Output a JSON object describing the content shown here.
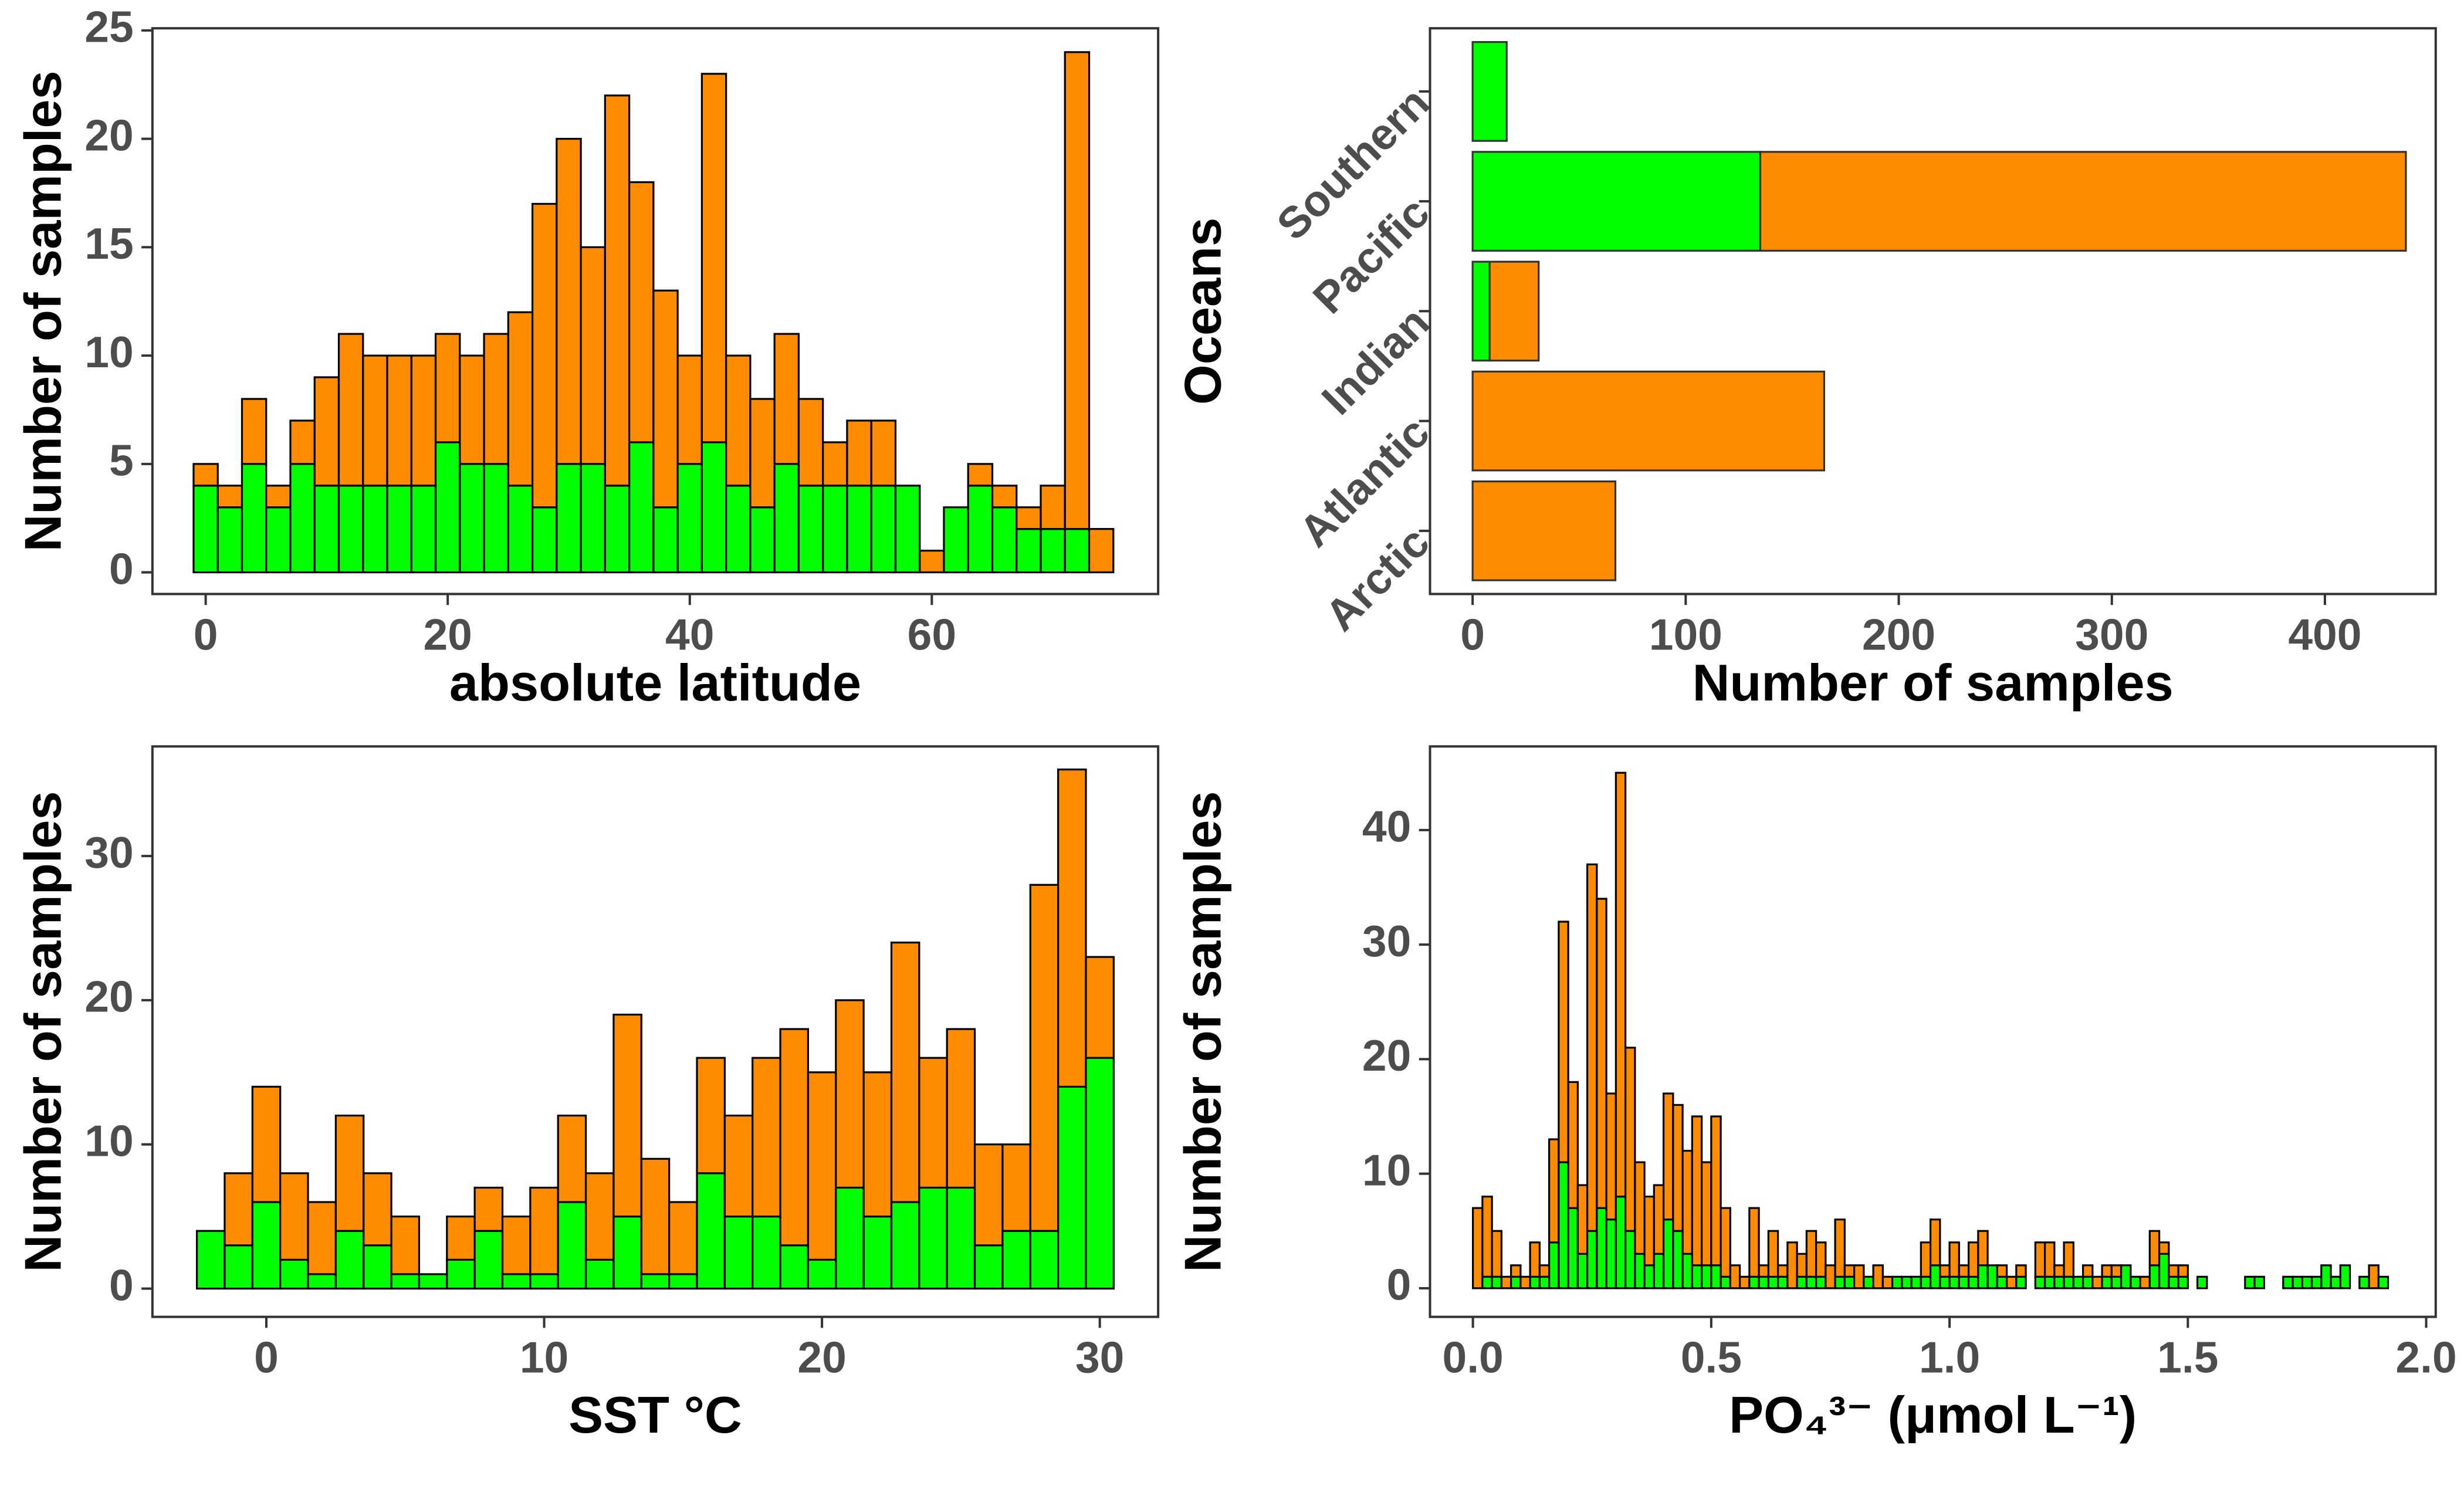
{
  "chart_data": [
    {
      "type": "histogram",
      "xlabel": "absolute latitude",
      "ylabel": "Number of samples",
      "bins": [
        -1,
        1,
        3,
        5,
        7,
        9,
        11,
        13,
        15,
        17,
        19,
        21,
        23,
        25,
        27,
        29,
        31,
        33,
        35,
        37,
        39,
        41,
        43,
        45,
        47,
        49,
        51,
        53,
        55,
        57,
        59,
        61,
        63,
        65,
        67,
        69,
        71,
        73,
        75
      ],
      "series": [
        {
          "color": "#00ff00",
          "values": [
            4,
            3,
            5,
            3,
            5,
            4,
            4,
            4,
            4,
            4,
            6,
            5,
            5,
            4,
            3,
            5,
            5,
            4,
            6,
            3,
            5,
            6,
            4,
            3,
            5,
            4,
            4,
            4,
            4,
            4,
            0,
            3,
            4,
            3,
            2,
            2,
            2,
            0
          ]
        },
        {
          "color": "#ff8c00",
          "values": [
            1,
            1,
            3,
            1,
            2,
            5,
            7,
            6,
            6,
            6,
            5,
            5,
            6,
            8,
            14,
            15,
            10,
            18,
            12,
            10,
            5,
            17,
            6,
            5,
            6,
            4,
            2,
            3,
            3,
            0,
            1,
            0,
            1,
            1,
            1,
            2,
            22,
            2
          ]
        }
      ],
      "xlim": [
        -4.4,
        78.7
      ],
      "xticks": [
        0,
        20,
        40,
        60
      ],
      "ylim": [
        -1,
        25.1
      ],
      "yticks": [
        0,
        5,
        10,
        15,
        20,
        25
      ]
    },
    {
      "type": "bar",
      "orientation": "horizontal",
      "xlabel": "Number of samples",
      "ylabel": "Oceans",
      "categories": [
        "Arctic",
        "Atlantic",
        "Indian",
        "Pacific",
        "Southern"
      ],
      "series": [
        {
          "color": "#00ff00",
          "values": [
            0,
            0,
            8,
            135,
            16
          ]
        },
        {
          "color": "#ff8c00",
          "values": [
            67,
            165,
            23,
            303,
            0
          ]
        }
      ],
      "xlim": [
        -20,
        452
      ],
      "xticks": [
        0,
        100,
        200,
        300,
        400
      ]
    },
    {
      "type": "histogram",
      "xlabel": "SST °C",
      "ylabel": "Number of samples",
      "bins": [
        -2.5,
        -1.5,
        -0.5,
        0.5,
        1.5,
        2.5,
        3.5,
        4.5,
        5.5,
        6.5,
        7.5,
        8.5,
        9.5,
        10.5,
        11.5,
        12.5,
        13.5,
        14.5,
        15.5,
        16.5,
        17.5,
        18.5,
        19.5,
        20.5,
        21.5,
        22.5,
        23.5,
        24.5,
        25.5,
        26.5,
        27.5,
        28.5,
        29.5,
        30.5
      ],
      "series": [
        {
          "color": "#00ff00",
          "values": [
            4,
            3,
            6,
            2,
            1,
            4,
            3,
            1,
            1,
            2,
            4,
            1,
            1,
            6,
            2,
            5,
            1,
            1,
            8,
            5,
            5,
            3,
            2,
            7,
            5,
            6,
            7,
            7,
            3,
            4,
            4,
            14,
            16
          ]
        },
        {
          "color": "#ff8c00",
          "values": [
            0,
            5,
            8,
            6,
            5,
            8,
            5,
            4,
            0,
            3,
            3,
            4,
            6,
            6,
            6,
            14,
            8,
            5,
            8,
            7,
            11,
            15,
            13,
            13,
            10,
            18,
            9,
            11,
            7,
            6,
            24,
            22,
            7
          ]
        }
      ],
      "xlim": [
        -4.1,
        32.1
      ],
      "xticks": [
        0,
        10,
        20,
        30
      ],
      "ylim": [
        -1.96,
        37.6
      ],
      "yticks": [
        0,
        10,
        20,
        30
      ]
    },
    {
      "type": "histogram",
      "xlabel": "PO₄³⁻ (μmol L⁻¹)",
      "ylabel": "Number of samples",
      "bins": [
        0,
        0.02,
        0.04,
        0.06,
        0.08,
        0.1,
        0.12,
        0.14,
        0.16,
        0.18,
        0.2,
        0.22,
        0.24,
        0.26,
        0.28,
        0.3,
        0.32,
        0.34,
        0.36,
        0.38,
        0.4,
        0.42,
        0.44,
        0.46,
        0.48,
        0.5,
        0.52,
        0.54,
        0.56,
        0.58,
        0.6,
        0.62,
        0.64,
        0.66,
        0.68,
        0.7,
        0.72,
        0.74,
        0.76,
        0.78,
        0.8,
        0.82,
        0.84,
        0.86,
        0.88,
        0.9,
        0.92,
        0.94,
        0.96,
        0.98,
        1,
        1.02,
        1.04,
        1.06,
        1.08,
        1.1,
        1.12,
        1.14,
        1.16,
        1.18,
        1.2,
        1.22,
        1.24,
        1.26,
        1.28,
        1.3,
        1.32,
        1.34,
        1.36,
        1.38,
        1.4,
        1.42,
        1.44,
        1.46,
        1.48,
        1.5,
        1.52,
        1.54,
        1.56,
        1.58,
        1.6,
        1.62,
        1.64,
        1.66,
        1.68,
        1.7,
        1.72,
        1.74,
        1.76,
        1.78,
        1.8,
        1.82,
        1.84,
        1.86,
        1.88,
        1.9,
        1.92
      ],
      "series": [
        {
          "color": "#00ff00",
          "values": [
            0,
            1,
            1,
            0,
            1,
            0,
            1,
            1,
            4,
            11,
            7,
            3,
            5,
            7,
            6,
            8,
            5,
            3,
            2,
            3,
            6,
            5,
            3,
            2,
            2,
            2,
            1,
            0,
            0,
            1,
            1,
            1,
            1,
            0,
            1,
            1,
            1,
            0,
            1,
            1,
            0,
            1,
            0,
            0,
            1,
            1,
            1,
            1,
            2,
            1,
            1,
            1,
            1,
            2,
            2,
            1,
            0,
            1,
            0,
            1,
            1,
            1,
            1,
            1,
            1,
            0,
            1,
            1,
            2,
            1,
            0,
            2,
            3,
            1,
            1,
            0,
            1,
            0,
            0,
            0,
            0,
            1,
            1,
            0,
            0,
            1,
            1,
            1,
            1,
            2,
            1,
            2,
            0,
            1,
            0,
            1
          ]
        },
        {
          "color": "#ff8c00",
          "values": [
            7,
            7,
            4,
            1,
            1,
            1,
            3,
            1,
            9,
            21,
            11,
            6,
            32,
            27,
            11,
            37,
            16,
            8,
            6,
            6,
            11,
            11,
            9,
            13,
            9,
            13,
            6,
            2,
            1,
            6,
            1,
            4,
            1,
            4,
            2,
            4,
            3,
            2,
            5,
            1,
            2,
            0,
            2,
            1,
            0,
            0,
            0,
            3,
            4,
            1,
            3,
            1,
            3,
            3,
            0,
            1,
            1,
            1,
            0,
            3,
            3,
            1,
            3,
            0,
            1,
            1,
            1,
            1,
            0,
            0,
            1,
            3,
            1,
            1,
            1,
            0,
            0,
            0,
            0,
            0,
            0,
            0,
            0,
            0,
            0,
            0,
            0,
            0,
            0,
            0,
            0,
            0,
            0,
            0,
            2,
            0
          ]
        }
      ],
      "xlim": [
        -0.09,
        2.02
      ],
      "xticks": [
        {
          "value": 0,
          "label": "0.0"
        },
        0.5,
        {
          "value": 1,
          "label": "1.0"
        },
        1.5,
        {
          "value": 2,
          "label": "2.0"
        }
      ],
      "ylim": [
        -2.5,
        47.3
      ],
      "yticks": [
        0,
        10,
        20,
        30,
        40
      ]
    }
  ]
}
